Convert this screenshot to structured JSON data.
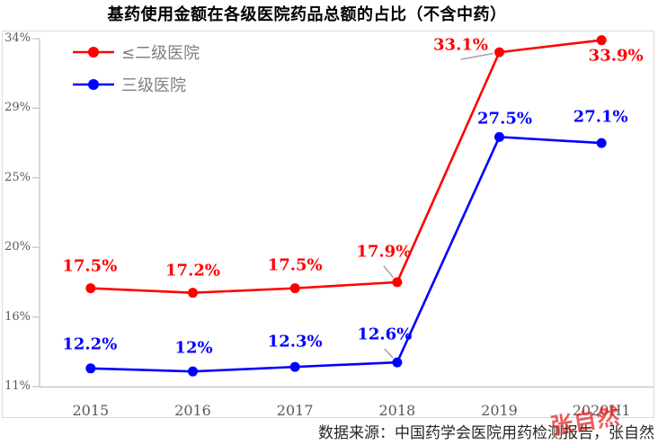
{
  "chart_data": {
    "type": "line",
    "title": "基药使用金额在各级医院药品总额的占比（不含中药）",
    "categories": [
      "2015",
      "2016",
      "2017",
      "2018",
      "2019",
      "2020H1"
    ],
    "series": [
      {
        "name": "≤二级医院",
        "color": "#ff0000",
        "values": [
          17.5,
          17.2,
          17.5,
          17.9,
          33.1,
          33.9
        ],
        "data_labels": [
          "17.5%",
          "17.2%",
          "17.5%",
          "17.9%",
          "33.1%",
          "33.9%"
        ],
        "label_offsets": [
          {
            "dx": -1,
            "dy": -25,
            "leader": false
          },
          {
            "dx": 0,
            "dy": -25,
            "leader": false
          },
          {
            "dx": 0,
            "dy": -26,
            "leader": false
          },
          {
            "dx": -15,
            "dy": -34,
            "leader": true
          },
          {
            "dx": -43,
            "dy": -8,
            "leader": true
          },
          {
            "dx": 16,
            "dy": 17,
            "leader": false
          }
        ]
      },
      {
        "name": "三级医院",
        "color": "#0000ff",
        "values": [
          12.2,
          12.0,
          12.3,
          12.6,
          27.5,
          27.1
        ],
        "data_labels": [
          "12.2%",
          "12%",
          "12.3%",
          "12.6%",
          "27.5%",
          "27.1%"
        ],
        "label_offsets": [
          {
            "dx": -1,
            "dy": -27,
            "leader": false
          },
          {
            "dx": 1,
            "dy": -26,
            "leader": false
          },
          {
            "dx": 0,
            "dy": -28,
            "leader": false
          },
          {
            "dx": -14,
            "dy": -31,
            "leader": true
          },
          {
            "dx": 6,
            "dy": -20,
            "leader": false
          },
          {
            "dx": -1,
            "dy": -29,
            "leader": false
          }
        ]
      }
    ],
    "ylim": [
      11,
      34
    ],
    "y_tick_labels_top_to_bottom": [
      "34%",
      "29%",
      "25%",
      "20%",
      "16%",
      "11%"
    ],
    "grid": false,
    "legend_position": "top-left"
  },
  "footer": {
    "source": "数据来源：中国药学会医院用药检测报告，张自然"
  },
  "watermark": {
    "text": "张自然"
  },
  "colors": {
    "axis": "#c9c9c9",
    "frame": "#d9d9d9",
    "tick_label": "#595959",
    "legend_text": "#7f7f7f",
    "leader": "#a6a6a6"
  }
}
